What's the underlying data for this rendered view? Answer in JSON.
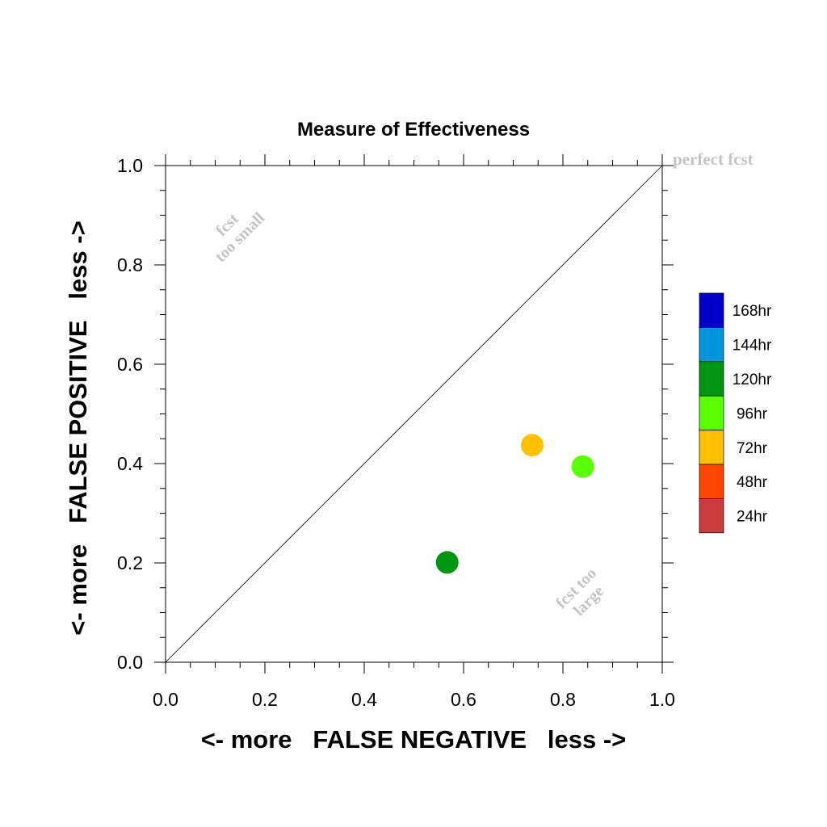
{
  "chart_data": {
    "type": "scatter",
    "title": "Measure of Effectiveness",
    "xlabel": "<- more   FALSE NEGATIVE   less ->",
    "ylabel": "<- more   FALSE POSITIVE   less ->",
    "xlim": [
      0.0,
      1.0
    ],
    "ylim": [
      0.0,
      1.0
    ],
    "xticks": [
      "0.0",
      "0.2",
      "0.4",
      "0.6",
      "0.8",
      "1.0"
    ],
    "yticks": [
      "0.0",
      "0.2",
      "0.4",
      "0.6",
      "0.8",
      "1.0"
    ],
    "grid": false,
    "diagonal_reference": true,
    "annotations": {
      "perfect": "perfect fcst",
      "too_small_line1": "fcst",
      "too_small_line2": "too small",
      "too_large_line1": "fcst too",
      "too_large_line2": "large"
    },
    "legend": {
      "position": "right",
      "entries": [
        {
          "label": "168hr",
          "color": "#0000c8"
        },
        {
          "label": "144hr",
          "color": "#0096dc"
        },
        {
          "label": "120hr",
          "color": "#009614"
        },
        {
          "label": "96hr",
          "color": "#5aff00"
        },
        {
          "label": "72hr",
          "color": "#ffc000"
        },
        {
          "label": "48hr",
          "color": "#ff4600"
        },
        {
          "label": "24hr",
          "color": "#c83c3c"
        }
      ]
    },
    "points": [
      {
        "series": "72hr",
        "x": 0.738,
        "y": 0.437,
        "color": "#ffc000"
      },
      {
        "series": "96hr",
        "x": 0.84,
        "y": 0.394,
        "color": "#5aff00"
      },
      {
        "series": "120hr",
        "x": 0.567,
        "y": 0.201,
        "color": "#009614"
      }
    ]
  }
}
